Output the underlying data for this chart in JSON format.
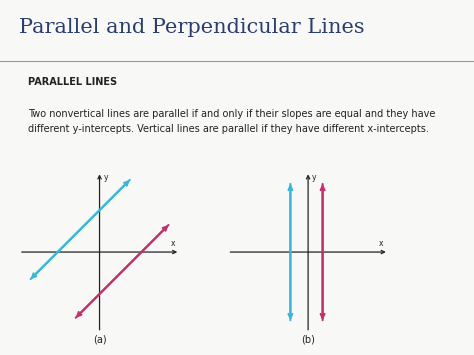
{
  "title": "Parallel and Perpendicular Lines",
  "title_fontsize": 15,
  "title_color": "#2c3e6b",
  "bg_color": "#f8f8f6",
  "box_bg_color": "#d8dae4",
  "box_header": "PARALLEL LINES",
  "diagram_a_label": "(a)",
  "diagram_b_label": "(b)",
  "line_color_blue": "#3ab5d8",
  "line_color_pink": "#c0306a",
  "axis_color": "#222222",
  "text_color": "#222222",
  "font_size_body": 7,
  "font_size_box_header": 7
}
